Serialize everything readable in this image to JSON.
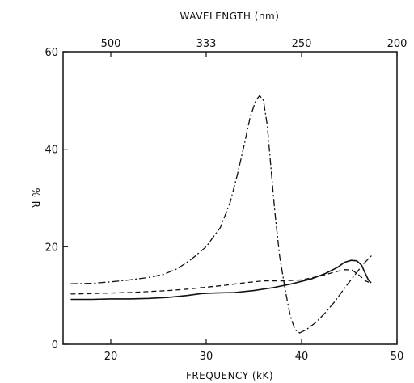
{
  "chart_data": {
    "type": "line",
    "xlabel": "FREQUENCY (kK)",
    "ylabel": "% R",
    "top_axis_label": "WAVELENGTH (nm)",
    "xlim": [
      15,
      50
    ],
    "ylim": [
      0,
      60
    ],
    "x_ticks": [
      20,
      30,
      40,
      50
    ],
    "y_ticks": [
      0,
      20,
      40,
      60
    ],
    "top_ticks": [
      {
        "label": "500",
        "frequency": 20
      },
      {
        "label": "333",
        "frequency": 30
      },
      {
        "label": "250",
        "frequency": 40
      },
      {
        "label": "200",
        "frequency": 50
      }
    ],
    "grid": false,
    "series": [
      {
        "style": "solid",
        "points": [
          [
            15.8,
            9.2
          ],
          [
            18,
            9.2
          ],
          [
            20,
            9.3
          ],
          [
            22,
            9.3
          ],
          [
            24,
            9.4
          ],
          [
            26,
            9.6
          ],
          [
            28,
            10.0
          ],
          [
            29.5,
            10.4
          ],
          [
            31,
            10.5
          ],
          [
            33,
            10.6
          ],
          [
            35,
            11.0
          ],
          [
            37,
            11.6
          ],
          [
            39,
            12.4
          ],
          [
            41,
            13.4
          ],
          [
            42.5,
            14.5
          ],
          [
            43.8,
            15.8
          ],
          [
            44.5,
            16.8
          ],
          [
            45.2,
            17.2
          ],
          [
            45.8,
            17.1
          ],
          [
            46.3,
            16.2
          ],
          [
            46.6,
            14.8
          ],
          [
            47.0,
            13.2
          ],
          [
            47.3,
            12.6
          ]
        ]
      },
      {
        "style": "dashed",
        "points": [
          [
            15.8,
            10.3
          ],
          [
            18,
            10.4
          ],
          [
            20,
            10.5
          ],
          [
            22,
            10.6
          ],
          [
            24,
            10.8
          ],
          [
            26,
            11.0
          ],
          [
            28,
            11.3
          ],
          [
            30,
            11.7
          ],
          [
            32,
            12.1
          ],
          [
            34,
            12.6
          ],
          [
            36,
            13.0
          ],
          [
            38,
            13.0
          ],
          [
            40,
            13.2
          ],
          [
            42,
            14.0
          ],
          [
            43.5,
            14.8
          ],
          [
            44.5,
            15.3
          ],
          [
            45.3,
            15.2
          ],
          [
            46.0,
            14.2
          ],
          [
            46.7,
            13.0
          ],
          [
            47.2,
            12.6
          ]
        ]
      },
      {
        "style": "dash-dot",
        "points": [
          [
            15.8,
            12.4
          ],
          [
            18,
            12.5
          ],
          [
            20,
            12.8
          ],
          [
            22,
            13.2
          ],
          [
            24,
            13.7
          ],
          [
            25.5,
            14.3
          ],
          [
            27,
            15.5
          ],
          [
            28.5,
            17.5
          ],
          [
            30,
            20.0
          ],
          [
            31.5,
            24.0
          ],
          [
            32.5,
            29.0
          ],
          [
            33.3,
            35.0
          ],
          [
            34,
            41.0
          ],
          [
            34.6,
            46.5
          ],
          [
            35.2,
            50.0
          ],
          [
            35.6,
            51.0
          ],
          [
            36,
            50.0
          ],
          [
            36.4,
            45.0
          ],
          [
            36.8,
            36.0
          ],
          [
            37.2,
            27.0
          ],
          [
            37.7,
            18.0
          ],
          [
            38.3,
            11.0
          ],
          [
            38.8,
            6.0
          ],
          [
            39.3,
            3.0
          ],
          [
            39.8,
            2.3
          ],
          [
            40.5,
            3.0
          ],
          [
            41.5,
            4.5
          ],
          [
            42.5,
            6.5
          ],
          [
            43.5,
            8.8
          ],
          [
            44.5,
            11.5
          ],
          [
            45.5,
            14.0
          ],
          [
            46.5,
            16.5
          ],
          [
            47.5,
            18.5
          ]
        ]
      }
    ]
  }
}
